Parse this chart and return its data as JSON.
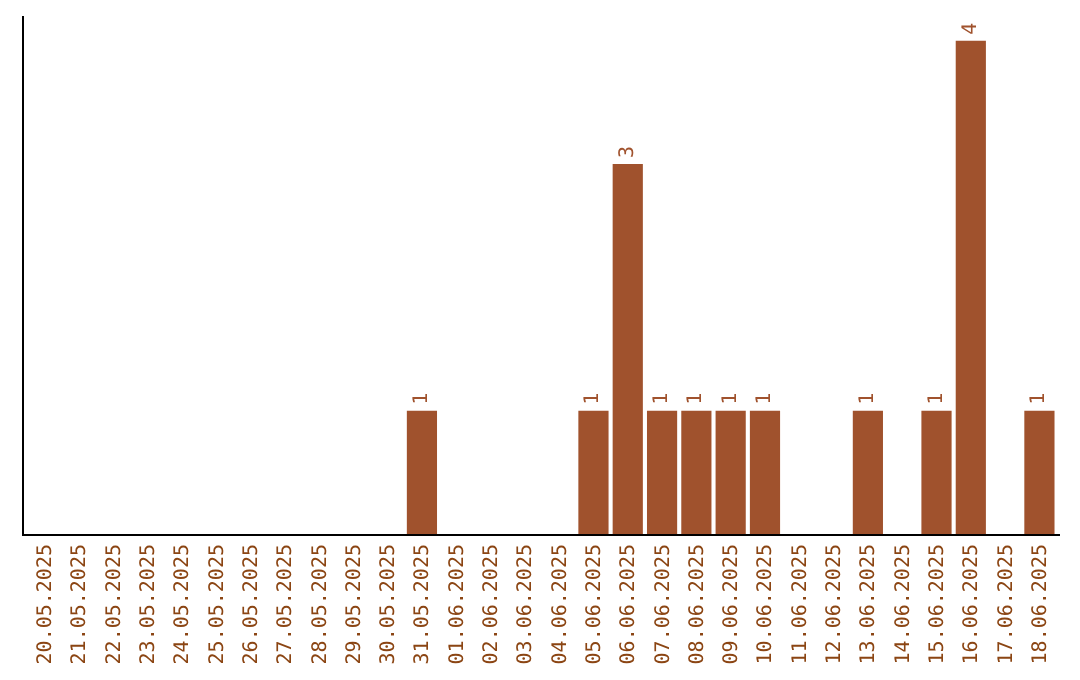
{
  "chart_data": {
    "type": "bar",
    "categories": [
      "20.05.2025",
      "21.05.2025",
      "22.05.2025",
      "23.05.2025",
      "24.05.2025",
      "25.05.2025",
      "26.05.2025",
      "27.05.2025",
      "28.05.2025",
      "29.05.2025",
      "30.05.2025",
      "31.05.2025",
      "01.06.2025",
      "02.06.2025",
      "03.06.2025",
      "04.06.2025",
      "05.06.2025",
      "06.06.2025",
      "07.06.2025",
      "08.06.2025",
      "09.06.2025",
      "10.06.2025",
      "11.06.2025",
      "12.06.2025",
      "13.06.2025",
      "14.06.2025",
      "15.06.2025",
      "16.06.2025",
      "17.06.2025",
      "18.06.2025"
    ],
    "values": [
      0,
      0,
      0,
      0,
      0,
      0,
      0,
      0,
      0,
      0,
      0,
      1,
      0,
      0,
      0,
      0,
      1,
      3,
      1,
      1,
      1,
      1,
      0,
      0,
      1,
      0,
      1,
      4,
      0,
      1
    ],
    "value_labels": [
      null,
      null,
      null,
      null,
      null,
      null,
      null,
      null,
      null,
      null,
      null,
      "1",
      null,
      null,
      null,
      null,
      "1",
      "3",
      "1",
      "1",
      "1",
      "1",
      null,
      null,
      "1",
      null,
      "1",
      "4",
      null,
      "1"
    ],
    "color": "#a0522d",
    "ylim": [
      0,
      4.2
    ],
    "tick_labels": "x",
    "legend": false
  }
}
